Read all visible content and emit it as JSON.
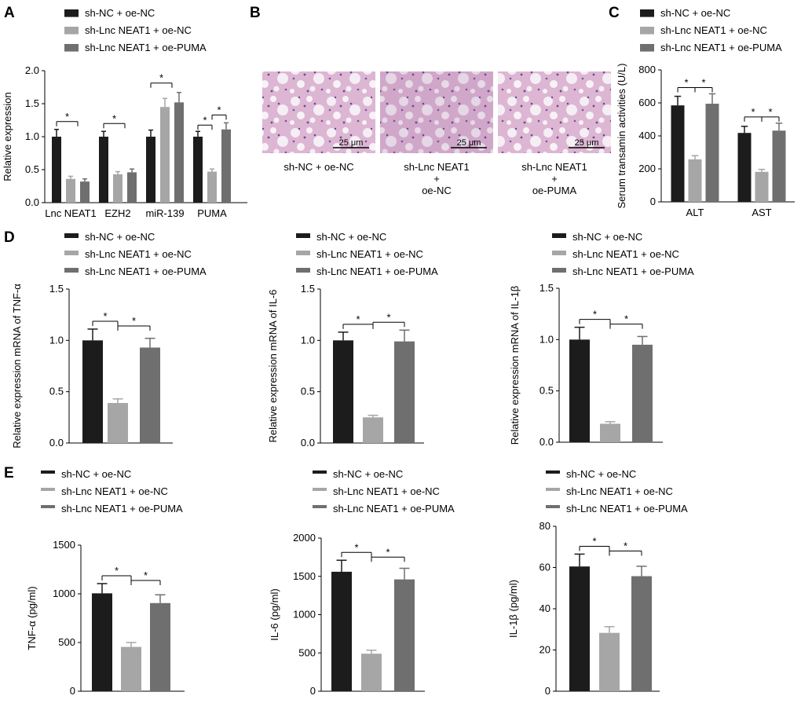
{
  "panel_letters": {
    "A": "A",
    "B": "B",
    "C": "C",
    "D": "D",
    "E": "E"
  },
  "colors": {
    "sh-NC + oe-NC": "#1c1c1c",
    "sh-Lnc NEAT1 + oe-NC": "#a6a6a6",
    "sh-Lnc NEAT1 + oe-PUMA": "#6f6f6f"
  },
  "panel_B": {
    "images": [
      {
        "caption": [
          "sh-NC + oe-NC"
        ],
        "scale_bar": "25 μm"
      },
      {
        "caption": [
          "sh-Lnc NEAT1",
          "+",
          "oe-NC"
        ],
        "scale_bar": "25 μm"
      },
      {
        "caption": [
          "sh-Lnc NEAT1",
          "+",
          "oe-PUMA"
        ],
        "scale_bar": "25 μm"
      }
    ]
  },
  "chart_data": [
    {
      "id": "A",
      "type": "bar",
      "ylabel": "Relative expression",
      "ylim": [
        0,
        2.0
      ],
      "yticks": [
        "0.0",
        "0.5",
        "1.0",
        "1.5",
        "2.0"
      ],
      "categories": [
        "Lnc NEAT1",
        "EZH2",
        "miR-139",
        "PUMA"
      ],
      "series": [
        {
          "name": "sh-NC + oe-NC",
          "values": [
            1.0,
            1.0,
            1.0,
            1.0
          ],
          "errors": [
            0.11,
            0.08,
            0.1,
            0.08
          ]
        },
        {
          "name": "sh-Lnc NEAT1 + oe-NC",
          "values": [
            0.36,
            0.43,
            1.45,
            0.47
          ],
          "errors": [
            0.04,
            0.04,
            0.13,
            0.04
          ]
        },
        {
          "name": "sh-Lnc NEAT1 + oe-PUMA",
          "values": [
            0.32,
            0.46,
            1.52,
            1.11
          ],
          "errors": [
            0.04,
            0.05,
            0.15,
            0.1
          ]
        }
      ],
      "significance": "*"
    },
    {
      "id": "C",
      "type": "bar",
      "ylabel": "Serum transamin activities (U/L)",
      "ylim": [
        0,
        800
      ],
      "yticks": [
        "0",
        "200",
        "400",
        "600",
        "800"
      ],
      "categories": [
        "ALT",
        "AST"
      ],
      "series": [
        {
          "name": "sh-NC + oe-NC",
          "values": [
            585,
            418
          ],
          "errors": [
            55,
            40
          ]
        },
        {
          "name": "sh-Lnc NEAT1 + oe-NC",
          "values": [
            258,
            182
          ],
          "errors": [
            22,
            15
          ]
        },
        {
          "name": "sh-Lnc NEAT1 + oe-PUMA",
          "values": [
            595,
            432
          ],
          "errors": [
            60,
            45
          ]
        }
      ],
      "significance": "*"
    },
    {
      "id": "D1",
      "type": "bar",
      "ylabel": "Relative expression mRNA of TNF-α",
      "ylim": [
        0,
        1.5
      ],
      "yticks": [
        "0.0",
        "0.5",
        "1.0",
        "1.5"
      ],
      "categories": [
        "sh-NC + oe-NC",
        "sh-Lnc NEAT1 + oe-NC",
        "sh-Lnc NEAT1 + oe-PUMA"
      ],
      "values": [
        1.0,
        0.39,
        0.93
      ],
      "errors": [
        0.11,
        0.04,
        0.09
      ],
      "significance": "*"
    },
    {
      "id": "D2",
      "type": "bar",
      "ylabel": "Relative expression mRNA of IL-6",
      "ylim": [
        0,
        1.5
      ],
      "yticks": [
        "0.0",
        "0.5",
        "1.0",
        "1.5"
      ],
      "categories": [
        "sh-NC + oe-NC",
        "sh-Lnc NEAT1 + oe-NC",
        "sh-Lnc NEAT1 + oe-PUMA"
      ],
      "values": [
        1.0,
        0.25,
        0.99
      ],
      "errors": [
        0.08,
        0.02,
        0.11
      ],
      "significance": "*"
    },
    {
      "id": "D3",
      "type": "bar",
      "ylabel": "Relative expression mRNA of IL-1β",
      "ylim": [
        0,
        1.5
      ],
      "yticks": [
        "0.0",
        "0.5",
        "1.0",
        "1.5"
      ],
      "categories": [
        "sh-NC + oe-NC",
        "sh-Lnc NEAT1 + oe-NC",
        "sh-Lnc NEAT1 + oe-PUMA"
      ],
      "values": [
        1.0,
        0.18,
        0.95
      ],
      "errors": [
        0.12,
        0.02,
        0.08
      ],
      "significance": "*"
    },
    {
      "id": "E1",
      "type": "bar",
      "ylabel": "TNF-α (pg/ml)",
      "ylim": [
        0,
        1500
      ],
      "yticks": [
        "0",
        "500",
        "1000",
        "1500"
      ],
      "categories": [
        "sh-NC + oe-NC",
        "sh-Lnc NEAT1 + oe-NC",
        "sh-Lnc NEAT1 + oe-PUMA"
      ],
      "values": [
        1005,
        455,
        905
      ],
      "errors": [
        100,
        45,
        85
      ],
      "significance": "*"
    },
    {
      "id": "E2",
      "type": "bar",
      "ylabel": "IL-6 (pg/ml)",
      "ylim": [
        0,
        2000
      ],
      "yticks": [
        "0",
        "500",
        "1000",
        "1500",
        "2000"
      ],
      "categories": [
        "sh-NC + oe-NC",
        "sh-Lnc NEAT1 + oe-NC",
        "sh-Lnc NEAT1 + oe-PUMA"
      ],
      "values": [
        1560,
        490,
        1460
      ],
      "errors": [
        150,
        45,
        145
      ],
      "significance": "*"
    },
    {
      "id": "E3",
      "type": "bar",
      "ylabel": "IL-1β (pg/ml)",
      "ylim": [
        0,
        80
      ],
      "yticks": [
        "0",
        "20",
        "40",
        "60",
        "80"
      ],
      "categories": [
        "sh-NC + oe-NC",
        "sh-Lnc NEAT1 + oe-NC",
        "sh-Lnc NEAT1 + oe-PUMA"
      ],
      "values": [
        60.5,
        28.3,
        55.8
      ],
      "errors": [
        6.0,
        3.0,
        4.8
      ],
      "significance": "*"
    }
  ]
}
